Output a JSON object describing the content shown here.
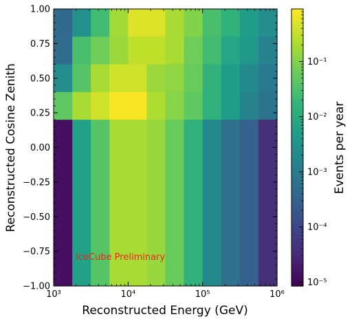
{
  "chart_data": {
    "type": "heatmap",
    "xlabel": "Reconstructed Energy (GeV)",
    "ylabel": "Reconstructed Cosine Zenith",
    "colorbar_label": "Events per year",
    "annotation": "IceCube Preliminary",
    "annotation_color": "#e8281c",
    "colormap": "viridis",
    "x_scale": "log",
    "x_range": [
      1000,
      1000000
    ],
    "y_range": [
      -1.0,
      1.0
    ],
    "color_scale": "log",
    "color_range": [
      8.5e-06,
      0.9
    ],
    "x_tick_labels": [
      "10³",
      "10⁴",
      "10⁵",
      "10⁶"
    ],
    "y_tick_labels": [
      "1.00",
      "0.75",
      "0.50",
      "0.25",
      "0.00",
      "−0.25",
      "−0.50",
      "−0.75",
      "−1.00"
    ],
    "colorbar_tick_labels": [
      "10⁻⁵",
      "10⁻⁴",
      "10⁻³",
      "10⁻²",
      "10⁻¹"
    ],
    "x_bin_edges": [
      1000,
      1780,
      3160,
      5620,
      10000,
      17800,
      31600,
      56200,
      100000,
      178000,
      316000,
      562000,
      1000000
    ],
    "zenith_rows": [
      {
        "y0": 0.8,
        "y1": 1.0,
        "values": [
          0.00045,
          0.003,
          0.025,
          0.18,
          0.5,
          0.5,
          0.2,
          0.1,
          0.03,
          0.015,
          0.005,
          0.0025
        ]
      },
      {
        "y0": 0.6,
        "y1": 0.8,
        "values": [
          0.0005,
          0.03,
          0.07,
          0.16,
          0.3,
          0.3,
          0.2,
          0.07,
          0.025,
          0.008,
          0.004,
          0.0015
        ]
      },
      {
        "y0": 0.4,
        "y1": 0.6,
        "values": [
          0.0025,
          0.04,
          0.2,
          0.4,
          0.4,
          0.16,
          0.13,
          0.06,
          0.015,
          0.005,
          0.002,
          0.001
        ]
      },
      {
        "y0": 0.2,
        "y1": 0.4,
        "values": [
          0.05,
          0.2,
          0.4,
          0.8,
          0.8,
          0.22,
          0.11,
          0.05,
          0.015,
          0.005,
          0.0015,
          0.0007
        ]
      },
      {
        "y0": -1.0,
        "y1": 0.2,
        "values": [
          1.3e-05,
          0.006,
          0.04,
          0.2,
          0.2,
          0.15,
          0.06,
          0.015,
          0.002,
          0.0006,
          0.0003,
          4e-05
        ]
      }
    ]
  }
}
